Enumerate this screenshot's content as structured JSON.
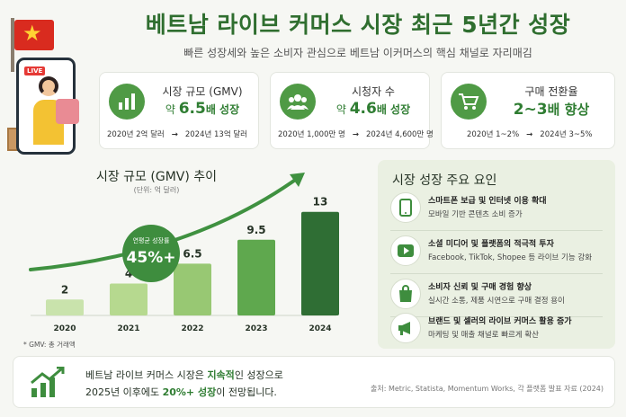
{
  "header": {
    "title": "베트남 라이브 커머스 시장 최근 5년간 성장",
    "subtitle": "빠른 성장세와 높은 소비자 관심으로 베트남 이커머스의 핵심 채널로 자리매김",
    "live_badge": "LIVE"
  },
  "stats": [
    {
      "icon": "bar-chart-icon",
      "label": "시장 규모 (GMV)",
      "value_prefix": "약 ",
      "value_main": "6.5",
      "value_suffix": "배 성장",
      "from": "2020년 2억 달러",
      "arrow": "→",
      "to": "2024년 13억 달러"
    },
    {
      "icon": "users-icon",
      "label": "시청자 수",
      "value_prefix": "약 ",
      "value_main": "4.6",
      "value_suffix": "배 성장",
      "from": "2020년 1,000만 명",
      "arrow": "→",
      "to": "2024년 4,600만 명"
    },
    {
      "icon": "cart-icon",
      "label": "구매 전환율",
      "value_prefix": "",
      "value_main": "2~3",
      "value_suffix": "배 향상",
      "from": "2020년 1~2%",
      "arrow": "→",
      "to": "2024년 3~5%"
    }
  ],
  "chart_panel": {
    "title": "시장 규모 (GMV) 추이",
    "unit": "(단위: 억 달러)",
    "badge_label": "연평균 성장률",
    "badge_value": "45%+",
    "note": "* GMV: 총 거래액"
  },
  "chart_data": {
    "type": "bar",
    "title": "시장 규모 (GMV) 추이",
    "unit": "(단위: 억 달러)",
    "categories": [
      "2020",
      "2021",
      "2022",
      "2023",
      "2024"
    ],
    "values": [
      2,
      4,
      6.5,
      9.5,
      13
    ],
    "value_labels": [
      "2",
      "4",
      "6.5",
      "9.5",
      "13"
    ],
    "ylim": [
      0,
      15
    ],
    "bar_colors": [
      "#c9e3ac",
      "#b6d98f",
      "#98c873",
      "#5fa84e",
      "#2f6e34"
    ],
    "trend_arrow": true,
    "grid": false
  },
  "factors": {
    "title": "시장 성장 주요 요인",
    "items": [
      {
        "icon": "smartphone-icon",
        "title": "스마트폰 보급 및 인터넷 이용 확대",
        "desc": "모바일 기반 콘텐츠 소비 증가"
      },
      {
        "icon": "video-play-icon",
        "title": "소셜 미디어 및 플랫폼의 적극적 투자",
        "desc": "Facebook, TikTok, Shopee 등 라이브 기능 강화"
      },
      {
        "icon": "shopping-bag-icon",
        "title": "소비자 신뢰 및 구매 경험 향상",
        "desc": "실시간 소통, 제품 시연으로 구매 결정 용이"
      },
      {
        "icon": "megaphone-icon",
        "title": "브랜드 및 셀러의 라이브 커머스 활용 증가",
        "desc": "마케팅 및 매출 채널로 빠르게 확산"
      }
    ]
  },
  "bottom": {
    "line1_a": "베트남 라이브 커머스 시장은 ",
    "line1_b": "지속적",
    "line1_c": "인 성장으로",
    "line2_a": "2025년 이후에도 ",
    "line2_b": "20%+ 성장",
    "line2_c": "이 전망됩니다.",
    "source": "출처: Metric, Statista, Momentum Works, 각 플랫폼 발표 자료 (2024)"
  },
  "colors": {
    "accent": "#2f7d32",
    "dark_green": "#2f6e34",
    "panel_bg": "#eaf0e2",
    "flag_red": "#d92b1f",
    "flag_star": "#ffd233"
  }
}
